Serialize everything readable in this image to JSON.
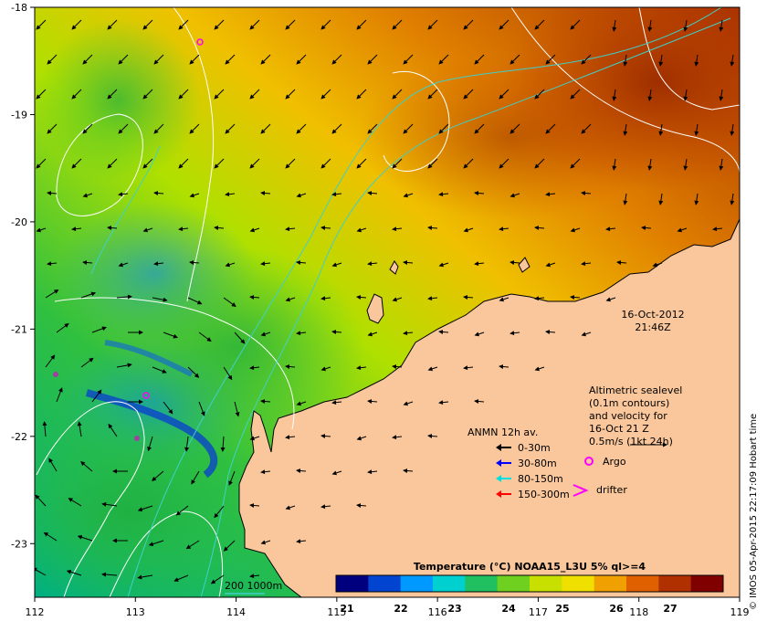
{
  "map": {
    "lon_range": [
      112,
      119
    ],
    "lat_range": [
      -23.5,
      -18
    ],
    "x_ticks": [
      "112",
      "113",
      "114",
      "115",
      "116",
      "117",
      "118",
      "119"
    ],
    "y_ticks": [
      "-18",
      "-19",
      "-20",
      "-21",
      "-22",
      "-23"
    ],
    "land_color": "#f9c79b",
    "stamp": {
      "date": "16-Oct-2012",
      "time": "21:46Z"
    },
    "altimetry_note": [
      "Altimetric sealevel",
      "(0.1m contours)",
      "and velocity for",
      "16-Oct 21 Z",
      "0.5m/s (1kt 24h)"
    ],
    "legend": {
      "title": "ANMN 12h av.",
      "items": [
        {
          "label": "0-30m",
          "color": "#000000"
        },
        {
          "label": "30-80m",
          "color": "#0000ff"
        },
        {
          "label": "80-150m",
          "color": "#00e0e0"
        },
        {
          "label": "150-300m",
          "color": "#ff0000"
        }
      ],
      "argo": "Argo",
      "drifter": "drifter"
    },
    "isobath_label": "200  1000m",
    "colorbar": {
      "title": "Temperature (°C) NOAA15_L3U 5% ql>=4",
      "ticks": [
        "21",
        "22",
        "23",
        "24",
        "25",
        "26",
        "27"
      ],
      "colors": [
        "#00007f",
        "#0044d0",
        "#0099ff",
        "#00d0d0",
        "#20c060",
        "#70d020",
        "#c8e000",
        "#f0e000",
        "#f0a000",
        "#e06000",
        "#b03000",
        "#800000"
      ]
    },
    "credit": "© IMOS 05-Apr-2015 22:17:09 Hobart time",
    "colors": {
      "argo": "#ff00ff",
      "drifter": "#ff00ff",
      "contour": "#ffffff",
      "isobath": "#40d0c8"
    }
  }
}
